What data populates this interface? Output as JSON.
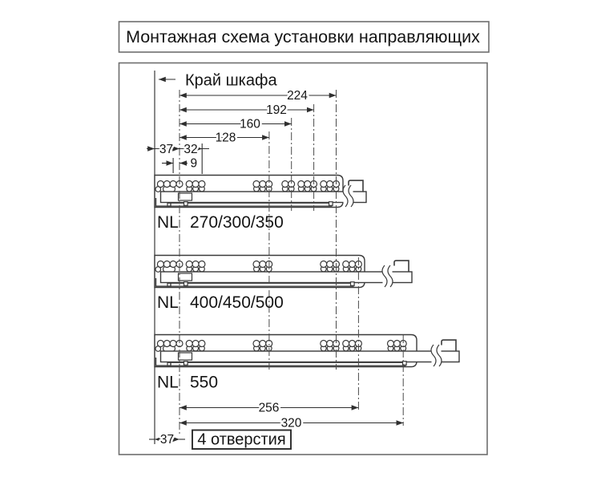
{
  "title": "Монтажная схема установки направляющих",
  "cabinet_edge_label": "Край шкафа",
  "holes_note": "4 отверстия",
  "nl_prefix": "NL",
  "slides": [
    {
      "label": "270/300/350",
      "hole_groups": [
        {
          "at_mm": 0,
          "count": 4
        },
        {
          "at_mm": 32,
          "count": 3
        },
        {
          "at_mm": 128,
          "count": 3
        },
        {
          "at_mm": 160,
          "count": 2
        },
        {
          "at_mm": 192,
          "count": 3
        },
        {
          "at_mm": 224,
          "count": 3
        }
      ]
    },
    {
      "label": "400/450/500",
      "hole_groups": [
        {
          "at_mm": 0,
          "count": 4
        },
        {
          "at_mm": 32,
          "count": 3
        },
        {
          "at_mm": 128,
          "count": 3
        },
        {
          "at_mm": 224,
          "count": 3
        },
        {
          "at_mm": 256,
          "count": 3
        }
      ]
    },
    {
      "label": "550",
      "hole_groups": [
        {
          "at_mm": 0,
          "count": 4
        },
        {
          "at_mm": 32,
          "count": 3
        },
        {
          "at_mm": 128,
          "count": 3
        },
        {
          "at_mm": 224,
          "count": 3
        },
        {
          "at_mm": 256,
          "count": 3
        },
        {
          "at_mm": 320,
          "count": 3
        }
      ]
    }
  ],
  "dims": {
    "top": [
      {
        "label": "224",
        "mm": 224
      },
      {
        "label": "192",
        "mm": 192
      },
      {
        "label": "160",
        "mm": 160
      },
      {
        "label": "128",
        "mm": 128
      }
    ],
    "left": [
      {
        "label": "37",
        "mm": 37
      },
      {
        "label": "32",
        "mm": 32
      },
      {
        "label": "9",
        "mm": 9
      }
    ],
    "bottom": [
      {
        "label": "256",
        "mm": 256
      },
      {
        "label": "320",
        "mm": 320
      },
      {
        "label": "37",
        "mm": 37
      }
    ]
  }
}
